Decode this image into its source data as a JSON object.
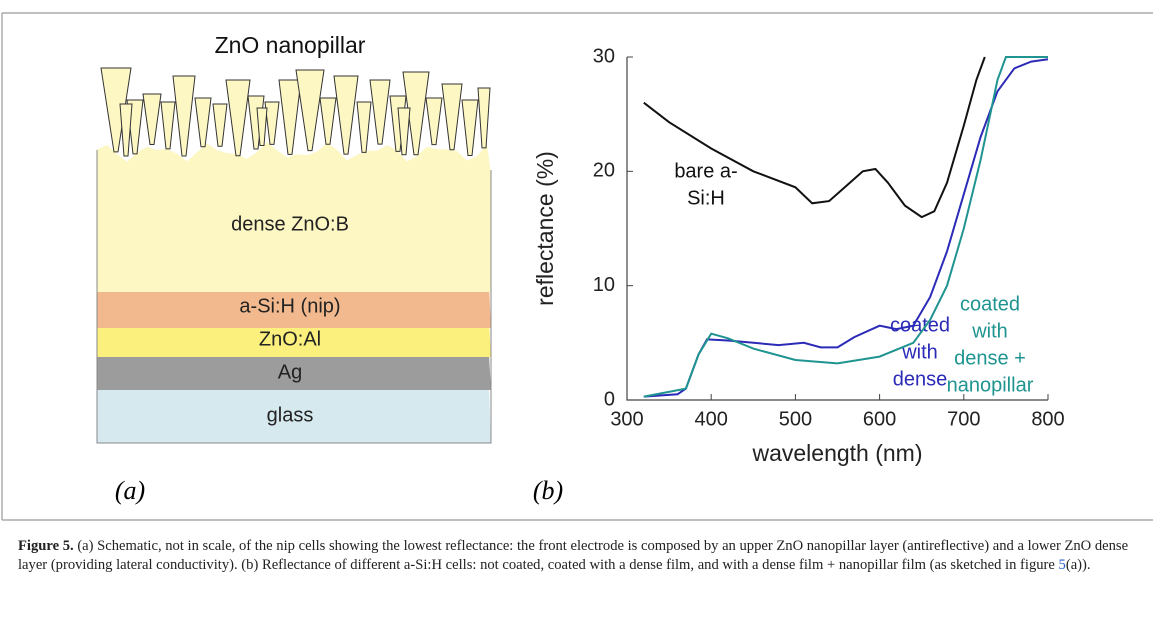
{
  "figure": {
    "schematic": {
      "title": "ZnO nanopillar",
      "layers": [
        {
          "label": "dense ZnO:B",
          "color": "#fdf7c3"
        },
        {
          "label": "a-Si:H (nip)",
          "color": "#f3b98e"
        },
        {
          "label": "ZnO:Al",
          "color": "#fbf07e"
        },
        {
          "label": "Ag",
          "color": "#9c9c9c"
        },
        {
          "label": "glass",
          "color": "#d6e9ef"
        }
      ],
      "panel_label": "(a)"
    },
    "panel_label_b": "(b)",
    "caption": {
      "label": "Figure 5.",
      "text": " (a) Schematic, not in scale, of the nip cells showing the lowest reflectance: the front electrode is composed by an upper ZnO nanopillar layer (antireflective) and a lower ZnO dense layer (providing lateral conductivity). (b) Reflectance of different a-Si:H cells: not coated, coated with a dense film, and with a dense film + nanopillar film (as sketched in figure ",
      "link": "5",
      "end": "(a))."
    }
  },
  "chart_data": {
    "type": "line",
    "xlabel": "wavelength (nm)",
    "ylabel": "reflectance (%)",
    "xlim": [
      300,
      800
    ],
    "ylim": [
      0,
      30
    ],
    "xticks": [
      300,
      400,
      500,
      600,
      700,
      800
    ],
    "yticks": [
      0,
      10,
      20,
      30
    ],
    "series": [
      {
        "label_lines": [
          "bare a-",
          "Si:H"
        ],
        "color": "#111111",
        "x": [
          320,
          350,
          400,
          450,
          500,
          520,
          540,
          560,
          580,
          595,
          610,
          630,
          650,
          665,
          680,
          700,
          715,
          725
        ],
        "values": [
          26,
          24.3,
          22,
          20,
          18.6,
          17.2,
          17.4,
          18.7,
          20,
          20.2,
          19,
          17,
          16,
          16.5,
          19,
          24,
          28,
          30
        ]
      },
      {
        "label_lines": [
          "coated",
          "with",
          "dense"
        ],
        "color": "#2b2bb8",
        "x": [
          320,
          360,
          370,
          385,
          395,
          420,
          450,
          480,
          510,
          530,
          550,
          570,
          600,
          620,
          640,
          660,
          680,
          700,
          720,
          740,
          760,
          780,
          800
        ],
        "values": [
          0.3,
          0.5,
          1,
          4,
          5.3,
          5.2,
          5,
          4.8,
          5,
          4.6,
          4.6,
          5.5,
          6.5,
          6.2,
          6.5,
          9,
          13,
          18,
          23,
          27,
          29,
          29.6,
          29.8
        ]
      },
      {
        "label_lines": [
          "coated",
          "with",
          "dense +",
          "nanopillar"
        ],
        "color": "#1f9490",
        "x": [
          320,
          370,
          385,
          400,
          420,
          450,
          500,
          550,
          600,
          640,
          660,
          680,
          700,
          720,
          740,
          750,
          800
        ],
        "values": [
          0.3,
          1,
          4,
          5.8,
          5.4,
          4.5,
          3.5,
          3.2,
          3.8,
          5,
          7,
          10,
          15,
          21,
          28,
          30,
          30
        ]
      }
    ]
  }
}
